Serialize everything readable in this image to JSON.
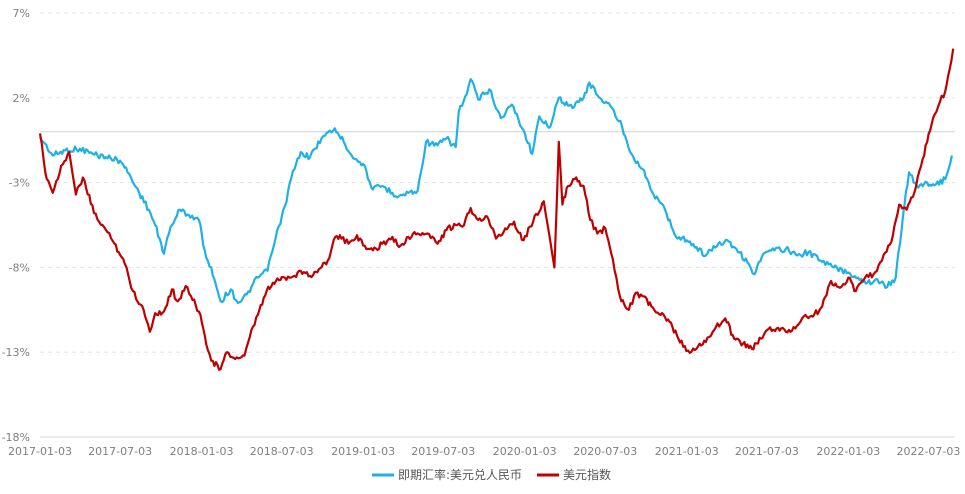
{
  "chart_data": {
    "type": "line",
    "title": "",
    "xlabel": "",
    "ylabel": "",
    "x_ticks": [
      "2017-01-03",
      "2017-07-03",
      "2018-01-03",
      "2018-07-03",
      "2019-01-03",
      "2019-07-03",
      "2020-01-03",
      "2020-07-03",
      "2021-01-03",
      "2021-07-03",
      "2022-01-03",
      "2022-07-03"
    ],
    "y_ticks": [
      "7%",
      "2%",
      "-3%",
      "-8%",
      "-13%",
      "-18%"
    ],
    "y_tick_values": [
      7,
      2,
      -3,
      -8,
      -13,
      -18
    ],
    "ylim": [
      -18,
      7
    ],
    "grid": "horizontal-dashed",
    "zero_line": true,
    "legend_position": "bottom-center",
    "series": [
      {
        "name": "即期汇率:美元兑人民币",
        "color": "#1fb1e6",
        "values": [
          [
            "2017-01-03",
            -0.3
          ],
          [
            "2017-02-01",
            -1.4
          ],
          [
            "2017-03-01",
            -1.1
          ],
          [
            "2017-04-03",
            -1.0
          ],
          [
            "2017-05-02",
            -1.3
          ],
          [
            "2017-06-01",
            -1.5
          ],
          [
            "2017-07-03",
            -1.7
          ],
          [
            "2017-07-20",
            -2.4
          ],
          [
            "2017-08-15",
            -3.6
          ],
          [
            "2017-09-06",
            -4.6
          ],
          [
            "2017-09-20",
            -5.5
          ],
          [
            "2017-10-10",
            -7.2
          ],
          [
            "2017-10-25",
            -5.6
          ],
          [
            "2017-11-15",
            -4.6
          ],
          [
            "2017-12-05",
            -4.9
          ],
          [
            "2017-12-28",
            -5.2
          ],
          [
            "2018-01-10",
            -7.0
          ],
          [
            "2018-02-01",
            -8.7
          ],
          [
            "2018-02-15",
            -10.0
          ],
          [
            "2018-03-10",
            -9.3
          ],
          [
            "2018-03-26",
            -10.1
          ],
          [
            "2018-04-15",
            -9.6
          ],
          [
            "2018-05-10",
            -8.6
          ],
          [
            "2018-06-01",
            -8.2
          ],
          [
            "2018-06-20",
            -6.2
          ],
          [
            "2018-07-10",
            -4.4
          ],
          [
            "2018-07-25",
            -2.7
          ],
          [
            "2018-08-15",
            -1.2
          ],
          [
            "2018-09-05",
            -1.5
          ],
          [
            "2018-10-01",
            -0.4
          ],
          [
            "2018-10-31",
            0.2
          ],
          [
            "2018-11-20",
            -0.6
          ],
          [
            "2018-12-15",
            -1.6
          ],
          [
            "2019-01-03",
            -1.9
          ],
          [
            "2019-01-25",
            -3.4
          ],
          [
            "2019-02-15",
            -3.2
          ],
          [
            "2019-03-10",
            -3.6
          ],
          [
            "2019-03-25",
            -3.8
          ],
          [
            "2019-04-15",
            -3.6
          ],
          [
            "2019-05-06",
            -3.5
          ],
          [
            "2019-05-25",
            -0.6
          ],
          [
            "2019-06-20",
            -0.8
          ],
          [
            "2019-07-10",
            -0.4
          ],
          [
            "2019-07-31",
            -0.9
          ],
          [
            "2019-08-07",
            1.2
          ],
          [
            "2019-08-25",
            2.2
          ],
          [
            "2019-09-03",
            3.1
          ],
          [
            "2019-09-20",
            1.9
          ],
          [
            "2019-10-15",
            2.5
          ],
          [
            "2019-11-10",
            0.8
          ],
          [
            "2019-12-05",
            1.6
          ],
          [
            "2019-12-31",
            0.1
          ],
          [
            "2020-01-20",
            -1.3
          ],
          [
            "2020-02-05",
            0.9
          ],
          [
            "2020-03-01",
            0.3
          ],
          [
            "2020-03-20",
            2.0
          ],
          [
            "2020-04-20",
            1.4
          ],
          [
            "2020-05-15",
            2.0
          ],
          [
            "2020-05-28",
            2.9
          ],
          [
            "2020-06-20",
            2.0
          ],
          [
            "2020-07-15",
            1.5
          ],
          [
            "2020-08-10",
            0.3
          ],
          [
            "2020-08-31",
            -1.3
          ],
          [
            "2020-09-25",
            -2.2
          ],
          [
            "2020-10-20",
            -3.7
          ],
          [
            "2020-11-15",
            -4.6
          ],
          [
            "2020-12-10",
            -6.2
          ],
          [
            "2021-01-03",
            -6.4
          ],
          [
            "2021-01-25",
            -6.8
          ],
          [
            "2021-02-15",
            -7.3
          ],
          [
            "2021-03-15",
            -6.6
          ],
          [
            "2021-04-05",
            -6.4
          ],
          [
            "2021-04-25",
            -6.9
          ],
          [
            "2021-05-20",
            -7.7
          ],
          [
            "2021-06-05",
            -8.4
          ],
          [
            "2021-06-25",
            -7.2
          ],
          [
            "2021-07-20",
            -7.0
          ],
          [
            "2021-08-15",
            -6.9
          ],
          [
            "2021-09-10",
            -7.3
          ],
          [
            "2021-10-05",
            -7.1
          ],
          [
            "2021-11-01",
            -7.6
          ],
          [
            "2021-12-01",
            -8.0
          ],
          [
            "2022-01-03",
            -8.3
          ],
          [
            "2022-01-25",
            -8.6
          ],
          [
            "2022-02-15",
            -8.9
          ],
          [
            "2022-03-10",
            -8.7
          ],
          [
            "2022-03-28",
            -9.2
          ],
          [
            "2022-04-20",
            -8.6
          ],
          [
            "2022-05-10",
            -4.3
          ],
          [
            "2022-05-20",
            -2.4
          ],
          [
            "2022-06-10",
            -3.3
          ],
          [
            "2022-06-30",
            -3.0
          ],
          [
            "2022-07-20",
            -3.1
          ],
          [
            "2022-08-10",
            -2.8
          ],
          [
            "2022-08-25",
            -1.4
          ]
        ]
      },
      {
        "name": "美元指数",
        "color": "#c00000",
        "values": [
          [
            "2017-01-03",
            -0.1
          ],
          [
            "2017-01-15",
            -2.4
          ],
          [
            "2017-02-01",
            -3.6
          ],
          [
            "2017-02-20",
            -2.0
          ],
          [
            "2017-03-10",
            -1.2
          ],
          [
            "2017-03-25",
            -3.7
          ],
          [
            "2017-04-10",
            -2.7
          ],
          [
            "2017-05-05",
            -4.8
          ],
          [
            "2017-06-01",
            -5.8
          ],
          [
            "2017-06-20",
            -6.6
          ],
          [
            "2017-07-10",
            -7.5
          ],
          [
            "2017-08-01",
            -9.4
          ],
          [
            "2017-08-25",
            -10.5
          ],
          [
            "2017-09-08",
            -11.8
          ],
          [
            "2017-09-20",
            -10.7
          ],
          [
            "2017-10-10",
            -10.6
          ],
          [
            "2017-10-28",
            -9.3
          ],
          [
            "2017-11-10",
            -10.0
          ],
          [
            "2017-11-28",
            -9.1
          ],
          [
            "2017-12-10",
            -9.7
          ],
          [
            "2017-12-28",
            -10.6
          ],
          [
            "2018-01-10",
            -12.0
          ],
          [
            "2018-01-25",
            -13.5
          ],
          [
            "2018-02-15",
            -14.0
          ],
          [
            "2018-03-01",
            -13.0
          ],
          [
            "2018-03-20",
            -13.4
          ],
          [
            "2018-04-10",
            -13.2
          ],
          [
            "2018-04-22",
            -12.1
          ],
          [
            "2018-05-10",
            -10.8
          ],
          [
            "2018-05-30",
            -9.4
          ],
          [
            "2018-06-20",
            -8.8
          ],
          [
            "2018-07-10",
            -8.6
          ],
          [
            "2018-08-01",
            -8.5
          ],
          [
            "2018-08-15",
            -8.2
          ],
          [
            "2018-09-05",
            -8.5
          ],
          [
            "2018-09-25",
            -8.1
          ],
          [
            "2018-10-15",
            -7.6
          ],
          [
            "2018-11-01",
            -6.2
          ],
          [
            "2018-11-15",
            -6.3
          ],
          [
            "2018-12-01",
            -6.6
          ],
          [
            "2018-12-20",
            -6.1
          ],
          [
            "2019-01-03",
            -6.7
          ],
          [
            "2019-01-25",
            -7.0
          ],
          [
            "2019-02-15",
            -6.6
          ],
          [
            "2019-03-10",
            -6.2
          ],
          [
            "2019-03-25",
            -6.8
          ],
          [
            "2019-04-15",
            -6.2
          ],
          [
            "2019-05-06",
            -6.0
          ],
          [
            "2019-05-28",
            -6.0
          ],
          [
            "2019-06-20",
            -6.6
          ],
          [
            "2019-07-10",
            -5.8
          ],
          [
            "2019-07-31",
            -5.5
          ],
          [
            "2019-08-15",
            -5.6
          ],
          [
            "2019-09-03",
            -4.5
          ],
          [
            "2019-09-20",
            -5.2
          ],
          [
            "2019-10-10",
            -5.0
          ],
          [
            "2019-10-30",
            -6.3
          ],
          [
            "2019-11-20",
            -5.7
          ],
          [
            "2019-12-10",
            -5.3
          ],
          [
            "2019-12-31",
            -6.4
          ],
          [
            "2020-01-15",
            -5.6
          ],
          [
            "2020-02-15",
            -4.1
          ],
          [
            "2020-03-05",
            -7.2
          ],
          [
            "2020-03-10",
            -8.0
          ],
          [
            "2020-03-15",
            -4.5
          ],
          [
            "2020-03-20",
            -0.6
          ],
          [
            "2020-03-28",
            -4.3
          ],
          [
            "2020-04-10",
            -3.2
          ],
          [
            "2020-04-25",
            -2.8
          ],
          [
            "2020-05-15",
            -3.2
          ],
          [
            "2020-05-30",
            -5.2
          ],
          [
            "2020-06-15",
            -6.0
          ],
          [
            "2020-07-03",
            -5.7
          ],
          [
            "2020-07-20",
            -7.5
          ],
          [
            "2020-08-05",
            -9.7
          ],
          [
            "2020-08-25",
            -10.5
          ],
          [
            "2020-09-10",
            -9.5
          ],
          [
            "2020-09-25",
            -9.7
          ],
          [
            "2020-10-15",
            -10.3
          ],
          [
            "2020-11-05",
            -10.8
          ],
          [
            "2020-11-25",
            -11.2
          ],
          [
            "2020-12-15",
            -12.2
          ],
          [
            "2021-01-06",
            -12.9
          ],
          [
            "2021-01-25",
            -12.8
          ],
          [
            "2021-02-15",
            -12.4
          ],
          [
            "2021-03-10",
            -11.5
          ],
          [
            "2021-03-31",
            -11.0
          ],
          [
            "2021-04-20",
            -12.2
          ],
          [
            "2021-05-10",
            -12.5
          ],
          [
            "2021-05-30",
            -12.8
          ],
          [
            "2021-06-20",
            -12.2
          ],
          [
            "2021-07-03",
            -11.7
          ],
          [
            "2021-07-25",
            -11.6
          ],
          [
            "2021-08-15",
            -11.8
          ],
          [
            "2021-09-05",
            -11.6
          ],
          [
            "2021-09-28",
            -10.8
          ],
          [
            "2021-10-15",
            -10.9
          ],
          [
            "2021-11-05",
            -10.3
          ],
          [
            "2021-11-25",
            -8.8
          ],
          [
            "2021-12-15",
            -9.2
          ],
          [
            "2022-01-03",
            -8.6
          ],
          [
            "2022-01-20",
            -9.4
          ],
          [
            "2022-02-10",
            -8.6
          ],
          [
            "2022-03-01",
            -8.4
          ],
          [
            "2022-03-20",
            -7.6
          ],
          [
            "2022-04-10",
            -6.5
          ],
          [
            "2022-04-28",
            -4.3
          ],
          [
            "2022-05-15",
            -4.6
          ],
          [
            "2022-06-01",
            -3.6
          ],
          [
            "2022-06-20",
            -1.6
          ],
          [
            "2022-07-10",
            0.4
          ],
          [
            "2022-07-25",
            1.5
          ],
          [
            "2022-08-10",
            2.4
          ],
          [
            "2022-08-20",
            3.7
          ],
          [
            "2022-08-28",
            4.9
          ]
        ]
      }
    ]
  }
}
